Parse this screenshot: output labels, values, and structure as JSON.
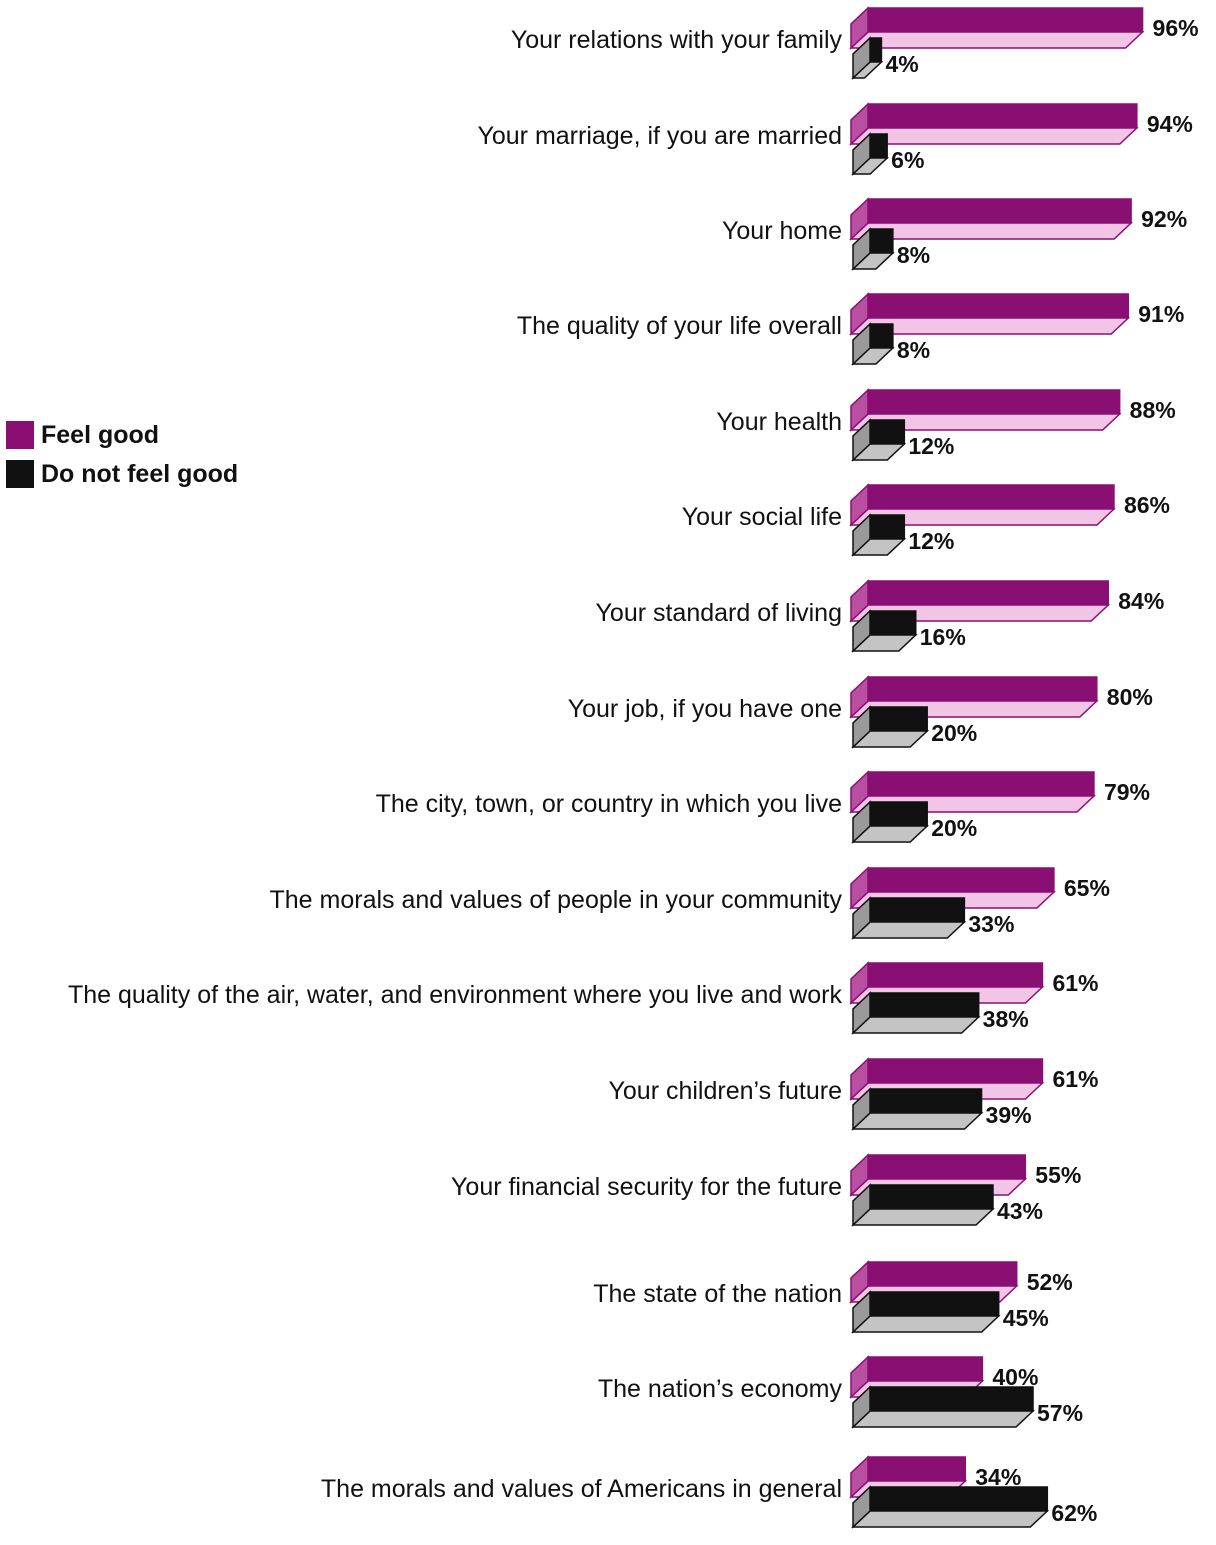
{
  "chart_data": {
    "type": "bar",
    "orientation": "horizontal",
    "style": "3d-paired-bars",
    "categories": [
      "Your relations with your family",
      "Your marriage, if you are married",
      "Your home",
      "The quality of your life overall",
      "Your health",
      "Your social life",
      "Your standard of living",
      "Your job, if you have one",
      "The city, town, or country in which you live",
      "The morals and values of people in your community",
      "The quality of the air, water, and environment where you live and work",
      "Your children’s future",
      "Your financial security for the future",
      "The state of the nation",
      "The nation’s economy",
      "The morals and values of Americans in general"
    ],
    "series": [
      {
        "name": "Feel good",
        "color": "#8a0f72",
        "values": [
          96,
          94,
          92,
          91,
          88,
          86,
          84,
          80,
          79,
          65,
          61,
          61,
          55,
          52,
          40,
          34
        ]
      },
      {
        "name": "Do not feel good",
        "color": "#111111",
        "values": [
          4,
          6,
          8,
          8,
          12,
          12,
          16,
          20,
          20,
          33,
          38,
          39,
          43,
          45,
          57,
          62
        ]
      }
    ],
    "value_labels": {
      "Feel good": [
        "96%",
        "94%",
        "92%",
        "91%",
        "88%",
        "86%",
        "84%",
        "80%",
        "79%",
        "65%",
        "61%",
        "61%",
        "55%",
        "52%",
        "40%",
        "34%"
      ],
      "Do not feel good": [
        "4%",
        "6%",
        "8%",
        "8%",
        "12%",
        "12%",
        "16%",
        "20%",
        "20%",
        "33%",
        "38%",
        "39%",
        "43%",
        "45%",
        "57%",
        "62%"
      ]
    },
    "xlim": [
      0,
      100
    ],
    "legend": {
      "position": "left",
      "entries": [
        "Feel good",
        "Do not feel good"
      ]
    },
    "grid": false
  }
}
